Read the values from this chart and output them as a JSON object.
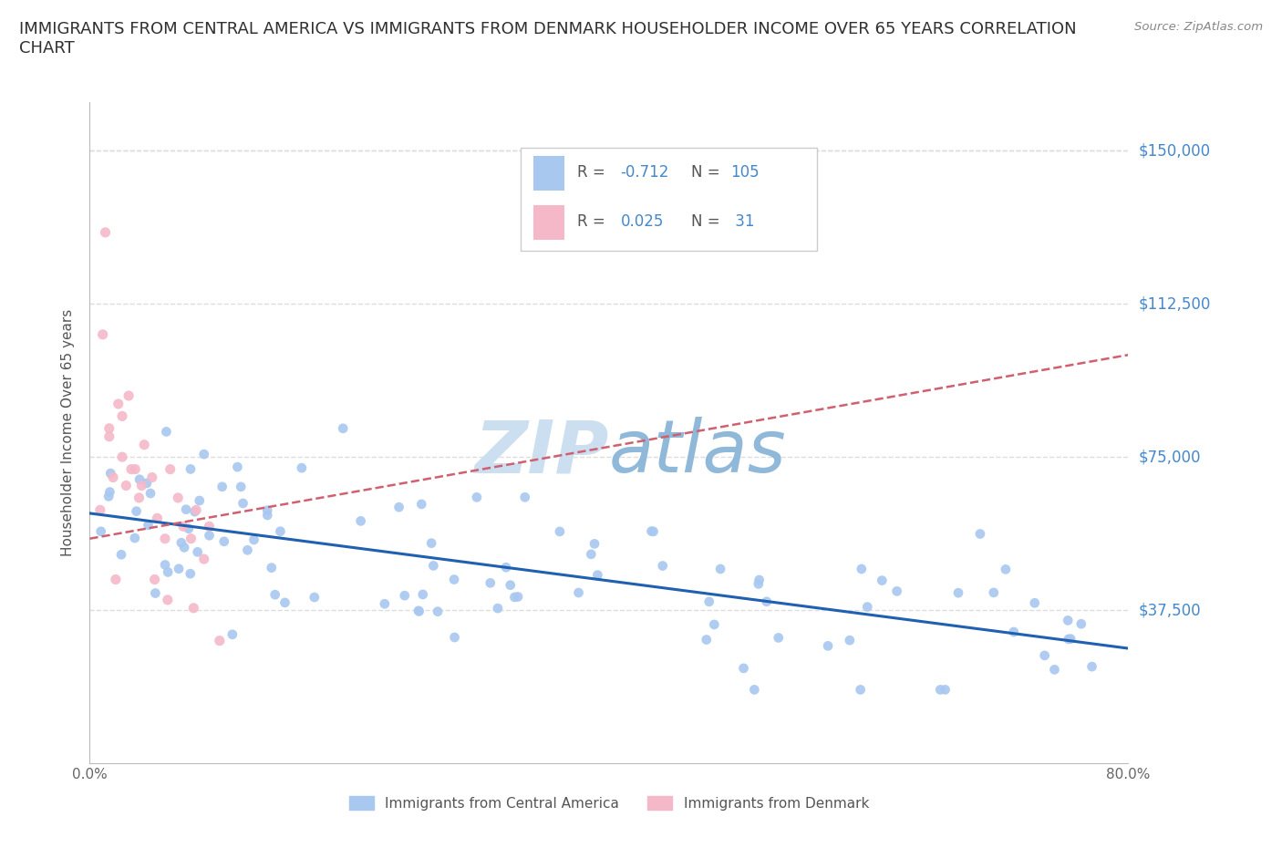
{
  "title": "IMMIGRANTS FROM CENTRAL AMERICA VS IMMIGRANTS FROM DENMARK HOUSEHOLDER INCOME OVER 65 YEARS CORRELATION\nCHART",
  "source": "Source: ZipAtlas.com",
  "ylabel": "Householder Income Over 65 years",
  "ytick_labels": [
    "$37,500",
    "$75,000",
    "$112,500",
    "$150,000"
  ],
  "ytick_values": [
    37500,
    75000,
    112500,
    150000
  ],
  "ymin": 0,
  "ymax": 162000,
  "xmin": 0.0,
  "xmax": 0.8,
  "R_central": -0.712,
  "N_central": 105,
  "R_denmark": 0.025,
  "N_denmark": 31,
  "color_central": "#a8c8f0",
  "color_denmark": "#f5b8c8",
  "line_color_central": "#2060b0",
  "line_color_denmark": "#d06070",
  "watermark_zip_color": "#ccdff0",
  "watermark_atlas_color": "#90b8d8",
  "background_color": "#ffffff",
  "grid_color": "#dddddd",
  "title_color": "#303030",
  "label_color": "#4488cc",
  "legend_R_color": "#555555",
  "legend_val_color": "#4488cc",
  "source_color": "#888888"
}
